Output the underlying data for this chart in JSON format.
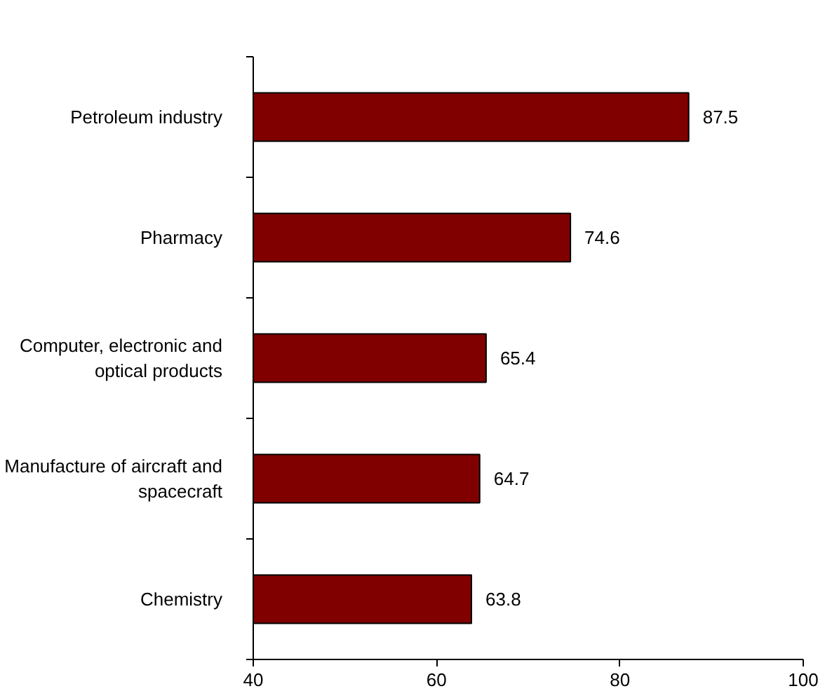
{
  "chart_data": {
    "type": "bar",
    "orientation": "horizontal",
    "categories": [
      "Petroleum industry",
      "Pharmacy",
      "Computer, electronic and\noptical products",
      "Manufacture of aircraft and\nspacecraft",
      "Chemistry"
    ],
    "values": [
      87.5,
      74.6,
      65.4,
      64.7,
      63.8
    ],
    "color": "#800000",
    "xlim": [
      40,
      100
    ],
    "xticks": [
      40,
      60,
      80,
      100
    ],
    "grid": false,
    "data_labels": true
  }
}
